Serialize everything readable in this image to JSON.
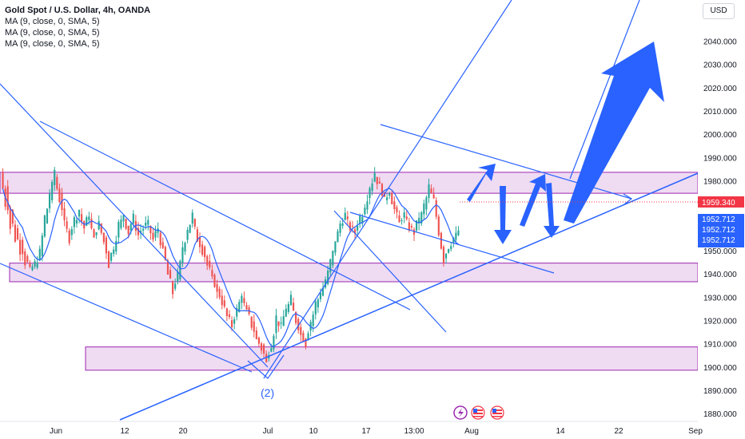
{
  "header": {
    "title": "Gold Spot / U.S. Dollar, 4h, OANDA",
    "indicators": [
      "MA (9, close, 0, SMA, 5)",
      "MA (9, close, 0, SMA, 5)",
      "MA (9, close, 0, SMA, 5)"
    ],
    "currency": "USD"
  },
  "colors": {
    "up": "#26a69a",
    "down": "#ef5350",
    "ma": "#2962ff",
    "zone_fill": "#e1bee7",
    "zone_stroke": "#9c27b0",
    "line": "#2962ff",
    "price_tag": "#f23645",
    "ma_tag": "#2962ff"
  },
  "chart_data": {
    "type": "candlestick",
    "symbol": "XAUUSD",
    "timeframe": "4h",
    "ylim": [
      1877,
      2058
    ],
    "y_ticks": [
      "1880.000",
      "1890.000",
      "1900.000",
      "1910.000",
      "1920.000",
      "1930.000",
      "1940.000",
      "1950.000",
      "1960.000",
      "1970.000",
      "1980.000",
      "1990.000",
      "2000.000",
      "2010.000",
      "2020.000",
      "2030.000",
      "2040.000"
    ],
    "x_ticks": [
      "Jun",
      "12",
      "20",
      "Jul",
      "10",
      "17",
      "13:00",
      "Aug",
      "14",
      "22",
      "Sep"
    ],
    "last_price": "1959.340",
    "ma_values": [
      "1952.712",
      "1952.712",
      "1952.712"
    ],
    "wave_label": "(2)",
    "zones": [
      {
        "from": 1975,
        "to": 1984
      },
      {
        "from": 1937,
        "to": 1945
      },
      {
        "from": 1899,
        "to": 1909
      }
    ],
    "price_path": [
      [
        1984,
        1970
      ],
      [
        1978,
        1960
      ],
      [
        1968,
        1955
      ],
      [
        1960,
        1950
      ],
      [
        1955,
        1945
      ],
      [
        1948,
        1942
      ],
      [
        1942,
        1945
      ],
      [
        1943,
        1950
      ],
      [
        1948,
        1965
      ],
      [
        1962,
        1975
      ],
      [
        1972,
        1985
      ],
      [
        1982,
        1972
      ],
      [
        1975,
        1962
      ],
      [
        1963,
        1955
      ],
      [
        1957,
        1964
      ],
      [
        1962,
        1968
      ],
      [
        1966,
        1960
      ],
      [
        1961,
        1966
      ],
      [
        1964,
        1955
      ],
      [
        1957,
        1962
      ],
      [
        1962,
        1954
      ],
      [
        1956,
        1944
      ],
      [
        1946,
        1952
      ],
      [
        1950,
        1962
      ],
      [
        1960,
        1966
      ],
      [
        1964,
        1958
      ],
      [
        1959,
        1965
      ],
      [
        1963,
        1957
      ],
      [
        1958,
        1960
      ],
      [
        1961,
        1962
      ],
      [
        1961,
        1955
      ],
      [
        1956,
        1960
      ],
      [
        1958,
        1950
      ],
      [
        1952,
        1940
      ],
      [
        1942,
        1932
      ],
      [
        1934,
        1940
      ],
      [
        1938,
        1952
      ],
      [
        1950,
        1960
      ],
      [
        1958,
        1966
      ],
      [
        1964,
        1955
      ],
      [
        1956,
        1950
      ],
      [
        1952,
        1944
      ],
      [
        1946,
        1938
      ],
      [
        1940,
        1932
      ],
      [
        1934,
        1928
      ],
      [
        1929,
        1922
      ],
      [
        1923,
        1918
      ],
      [
        1919,
        1925
      ],
      [
        1924,
        1932
      ],
      [
        1930,
        1924
      ],
      [
        1926,
        1918
      ],
      [
        1920,
        1912
      ],
      [
        1913,
        1908
      ],
      [
        1910,
        1902
      ],
      [
        1904,
        1910
      ],
      [
        1908,
        1922
      ],
      [
        1920,
        1918
      ],
      [
        1918,
        1926
      ],
      [
        1924,
        1930
      ],
      [
        1928,
        1920
      ],
      [
        1921,
        1914
      ],
      [
        1915,
        1910
      ],
      [
        1912,
        1920
      ],
      [
        1918,
        1928
      ],
      [
        1926,
        1933
      ],
      [
        1931,
        1938
      ],
      [
        1936,
        1946
      ],
      [
        1944,
        1955
      ],
      [
        1954,
        1962
      ],
      [
        1961,
        1966
      ],
      [
        1965,
        1960
      ],
      [
        1961,
        1958
      ],
      [
        1959,
        1965
      ],
      [
        1962,
        1970
      ],
      [
        1968,
        1978
      ],
      [
        1976,
        1984
      ],
      [
        1982,
        1978
      ],
      [
        1979,
        1972
      ],
      [
        1972,
        1976
      ],
      [
        1975,
        1968
      ],
      [
        1969,
        1962
      ],
      [
        1963,
        1966
      ],
      [
        1965,
        1960
      ],
      [
        1961,
        1958
      ],
      [
        1959,
        1965
      ],
      [
        1962,
        1970
      ],
      [
        1968,
        1978
      ],
      [
        1977,
        1972
      ],
      [
        1972,
        1958
      ],
      [
        1958,
        1946
      ],
      [
        1947,
        1952
      ],
      [
        1951,
        1956
      ],
      [
        1955,
        1959
      ]
    ]
  }
}
